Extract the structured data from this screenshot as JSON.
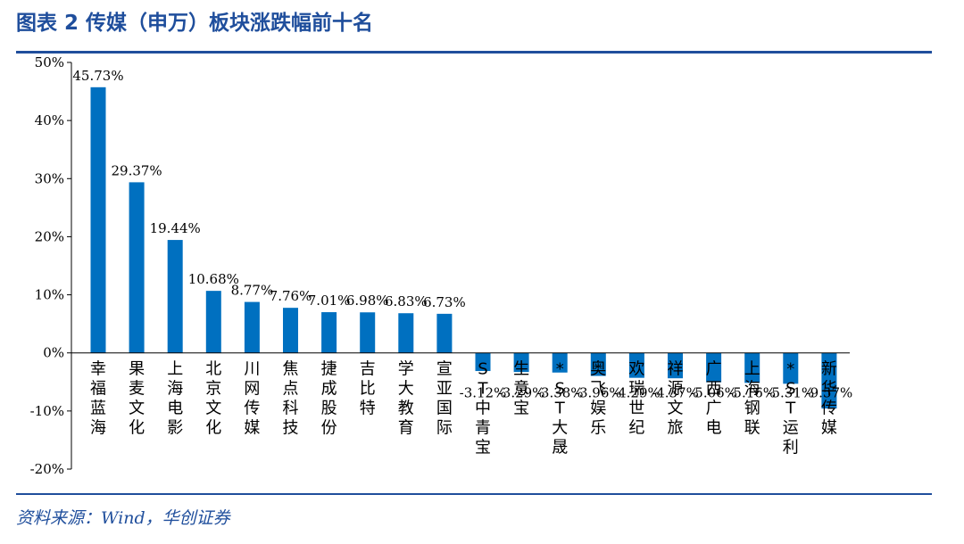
{
  "header": {
    "title": "图表 2   传媒（申万）板块涨跌幅前十名"
  },
  "footer": {
    "source": "资料来源：Wind，华创证券"
  },
  "colors": {
    "bar": "#0070c0",
    "accent": "#1f4e9c",
    "axis": "#000000"
  },
  "chart_data": {
    "type": "bar",
    "title": "",
    "xlabel": "",
    "ylabel": "",
    "ylim": [
      -20,
      50
    ],
    "yticks": [
      -20,
      -10,
      0,
      10,
      20,
      30,
      40,
      50
    ],
    "ytick_labels": [
      "-20%",
      "-10%",
      "0%",
      "10%",
      "20%",
      "30%",
      "40%",
      "50%"
    ],
    "grid": false,
    "legend": "none",
    "categories": [
      "幸福蓝海",
      "果麦文化",
      "上海电影",
      "北京文化",
      "川网传媒",
      "焦点科技",
      "捷成股份",
      "吉比特",
      "学大教育",
      "宣亚国际",
      "ST中青宝",
      "生意宝",
      "*ST大晟",
      "奥飞娱乐",
      "欢瑞世纪",
      "祥源文旅",
      "广西广电",
      "上海钢联",
      "*ST运利",
      "新华传媒"
    ],
    "values": [
      45.73,
      29.37,
      19.44,
      10.68,
      8.77,
      7.76,
      7.01,
      6.98,
      6.83,
      6.73,
      -3.12,
      -3.29,
      -3.38,
      -3.96,
      -4.29,
      -4.37,
      -5.06,
      -5.16,
      -5.31,
      -9.57
    ],
    "data_labels": [
      "45.73%",
      "29.37%",
      "19.44%",
      "10.68%",
      "8.77%",
      "7.76%",
      "7.01%",
      "6.98%",
      "6.83%",
      "6.73%",
      "-3.12%",
      "-3.29%",
      "-3.38%",
      "-3.96%",
      "-4.29%",
      "-4.37%",
      "-5.06%",
      "-5.16%",
      "-5.31%",
      "-9.57%"
    ]
  }
}
